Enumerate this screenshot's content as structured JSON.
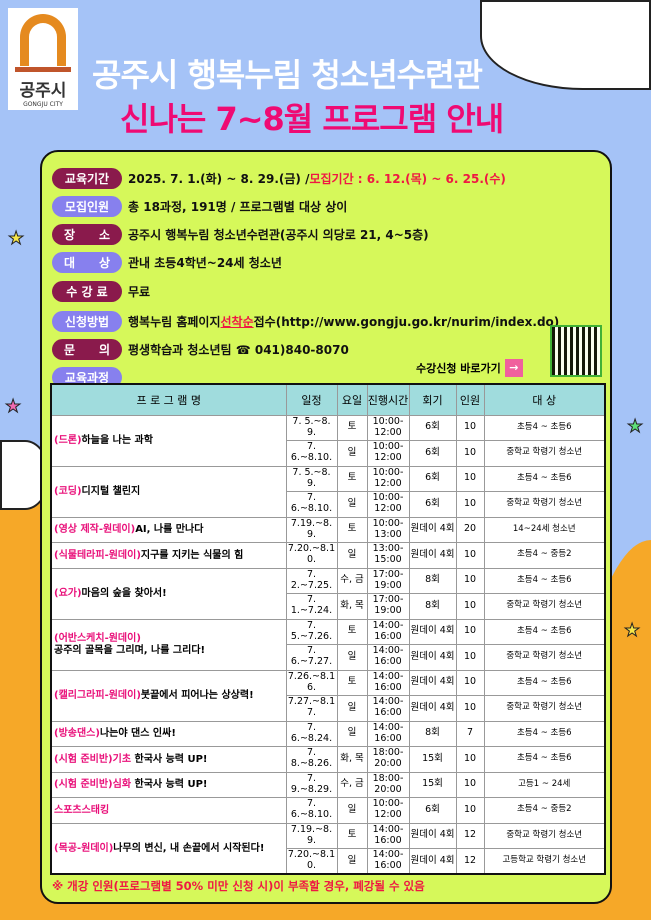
{
  "logo": {
    "korean": "공주시",
    "english": "GONGJU CITY"
  },
  "title": "공주시 행복누림 청소년수련관",
  "subtitle": "신나는 7~8월 프로그램 안내",
  "info": [
    {
      "label": "교육기간",
      "value": "2025. 7. 1.(화) ~ 8. 29.(금) / ",
      "highlight": "모집기간 : 6. 12.(목) ~ 6. 25.(수)"
    },
    {
      "label": "모집인원",
      "value": "총 18과정, 191명 / 프로그램별 대상 상이"
    },
    {
      "label": "장　　소",
      "value": "공주시 행복누림 청소년수련관(공주시 의당로 21, 4~5층)"
    },
    {
      "label": "대　　상",
      "value": "관내 초등4학년~24세 청소년"
    },
    {
      "label": "수 강 료",
      "value": "무료"
    },
    {
      "label": "신청방법",
      "value": "행복누림 홈페이지 ",
      "highlight": "선착순",
      "value2": " 접수(http://www.gongju.go.kr/nurim/index.do)"
    },
    {
      "label": "문　　의",
      "value": "평생학습과 청소년팀 ☎ 041)840-8070"
    },
    {
      "label": "교육과정",
      "value": ""
    }
  ],
  "apply_link": "수강신청 바로가기",
  "table": {
    "headers": [
      "프 로 그 램 명",
      "일정",
      "요일",
      "진행시간",
      "회기",
      "인원",
      "대 상"
    ],
    "programs": [
      {
        "prefix": "(드론)",
        "rest": "하늘을 나는 과학",
        "sessions": [
          [
            "7. 5.~8. 9.",
            "토",
            "10:00-12:00",
            "6회",
            "10",
            "초등4 ~ 초등6"
          ],
          [
            "7. 6.~8.10.",
            "일",
            "10:00-12:00",
            "6회",
            "10",
            "중학교 학령기 청소년"
          ]
        ]
      },
      {
        "prefix": "(코딩)",
        "rest": "디지털 챌린지",
        "sessions": [
          [
            "7. 5.~8. 9.",
            "토",
            "10:00-12:00",
            "6회",
            "10",
            "초등4 ~ 초등6"
          ],
          [
            "7. 6.~8.10.",
            "일",
            "10:00-12:00",
            "6회",
            "10",
            "중학교 학령기 청소년"
          ]
        ]
      },
      {
        "prefix": "(영상  제작-원데이)",
        "rest": "AI, 나를 만나다",
        "sessions": [
          [
            "7.19.~8. 9.",
            "토",
            "10:00-13:00",
            "원데이 4회",
            "20",
            "14~24세 청소년"
          ]
        ]
      },
      {
        "prefix": "(식물테라피-원데이)",
        "rest": "지구를 지키는 식물의 힘",
        "sessions": [
          [
            "7.20.~8.10.",
            "일",
            "13:00-15:00",
            "원데이 4회",
            "10",
            "초등4 ~ 중등2"
          ]
        ]
      },
      {
        "prefix": "(요가)",
        "rest": "마음의 숲을 찾아서!",
        "sessions": [
          [
            "7. 2.~7.25.",
            "수, 금",
            "17:00-19:00",
            "8회",
            "10",
            "초등4 ~ 초등6"
          ],
          [
            "7. 1.~7.24.",
            "화, 목",
            "17:00-19:00",
            "8회",
            "10",
            "중학교 학령기 청소년"
          ]
        ]
      },
      {
        "prefix": "(어반스케치-원데이)",
        "rest": "공주의 골목을 그리며, 나를 그리다!",
        "break": true,
        "sessions": [
          [
            "7. 5.~7.26.",
            "토",
            "14:00-16:00",
            "원데이 4회",
            "10",
            "초등4 ~ 초등6"
          ],
          [
            "7. 6.~7.27.",
            "일",
            "14:00-16:00",
            "원데이 4회",
            "10",
            "중학교 학령기 청소년"
          ]
        ]
      },
      {
        "prefix": "(캘리그라피-원데이)",
        "rest": "붓끝에서 피어나는 상상력!",
        "sessions": [
          [
            "7.26.~8.16.",
            "토",
            "14:00-16:00",
            "원데이 4회",
            "10",
            "초등4 ~ 초등6"
          ],
          [
            "7.27.~8.17.",
            "일",
            "14:00-16:00",
            "원데이 4회",
            "10",
            "중학교 학령기 청소년"
          ]
        ]
      },
      {
        "prefix": "(방송댄스)",
        "rest": "나는야 댄스 인싸!",
        "sessions": [
          [
            "7. 6.~8.24.",
            "일",
            "14:00-16:00",
            "8회",
            "7",
            "초등4 ~ 초등6"
          ]
        ]
      },
      {
        "prefix": "(시험 준비반)기초",
        "rest": " 한국사 능력 UP!",
        "sessions": [
          [
            "7. 8.~8.26.",
            "화, 목",
            "18:00-20:00",
            "15회",
            "10",
            "초등4 ~ 초등6"
          ]
        ]
      },
      {
        "prefix": "(시험 준비반)심화",
        "rest": " 한국사 능력 UP!",
        "sessions": [
          [
            "7. 9.~8.29.",
            "수, 금",
            "18:00-20:00",
            "15회",
            "10",
            "고등1 ~ 24세"
          ]
        ]
      },
      {
        "prefix": "스포츠스태킹",
        "rest": "",
        "sessions": [
          [
            "7. 6.~8.10.",
            "일",
            "10:00-12:00",
            "6회",
            "10",
            "초등4 ~ 중등2"
          ]
        ]
      },
      {
        "prefix": "(목공-원데이)",
        "rest": "나무의 변신, 내 손끝에서 시작된다!",
        "sessions": [
          [
            "7.19.~8. 9.",
            "토",
            "14:00-16:00",
            "원데이 4회",
            "12",
            "중학교 학령기 청소년"
          ],
          [
            "7.20.~8.10.",
            "일",
            "14:00-16:00",
            "원데이 4회",
            "12",
            "고등학교 학령기 청소년"
          ]
        ]
      }
    ]
  },
  "note": "※ 개강 인원(프로그램별 50% 미만 신청 시)이 부족할 경우, 폐강될 수 있음",
  "colors": {
    "sky": "#a5c3f7",
    "panel": "#d6f85a",
    "title_pink": "#ef0a73",
    "highlight_red": "#ef1843",
    "hill": "#f6a828"
  }
}
